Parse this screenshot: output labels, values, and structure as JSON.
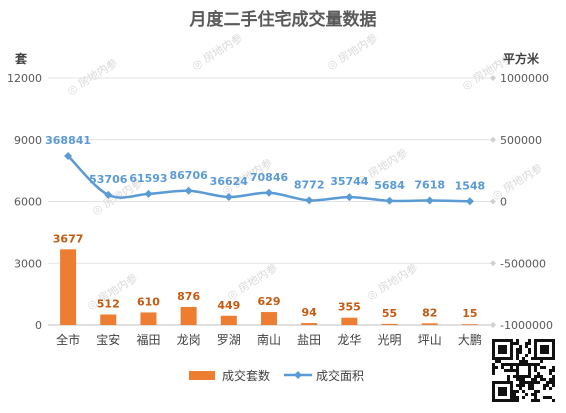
{
  "chart_data": {
    "type": "bar",
    "title": "月度二手住宅成交量数据",
    "categories": [
      "全市",
      "宝安",
      "福田",
      "龙岗",
      "罗湖",
      "南山",
      "盐田",
      "龙华",
      "光明",
      "坪山",
      "大鹏"
    ],
    "series": [
      {
        "name": "成交套数",
        "type": "bar",
        "axis": "left",
        "color": "#ed7d31",
        "values": [
          3677,
          512,
          610,
          876,
          449,
          629,
          94,
          355,
          55,
          82,
          15
        ]
      },
      {
        "name": "成交面积",
        "type": "line",
        "axis": "right",
        "color": "#5b9bd5",
        "values": [
          368841,
          53706,
          61593,
          86706,
          36624,
          70846,
          8772,
          35744,
          5684,
          7618,
          1548
        ]
      }
    ],
    "y_left": {
      "label": "套",
      "ylim": [
        0,
        12000
      ],
      "ticks": [
        "0",
        "3000",
        "6000",
        "9000",
        "12000"
      ]
    },
    "y_right": {
      "label": "平方米",
      "ylim": [
        -1000000,
        1000000
      ],
      "ticks": [
        "-1000000",
        "-500000",
        "0",
        "500000",
        "1000000"
      ]
    },
    "legend_position": "bottom",
    "grid": true,
    "watermark": "房地内参"
  }
}
